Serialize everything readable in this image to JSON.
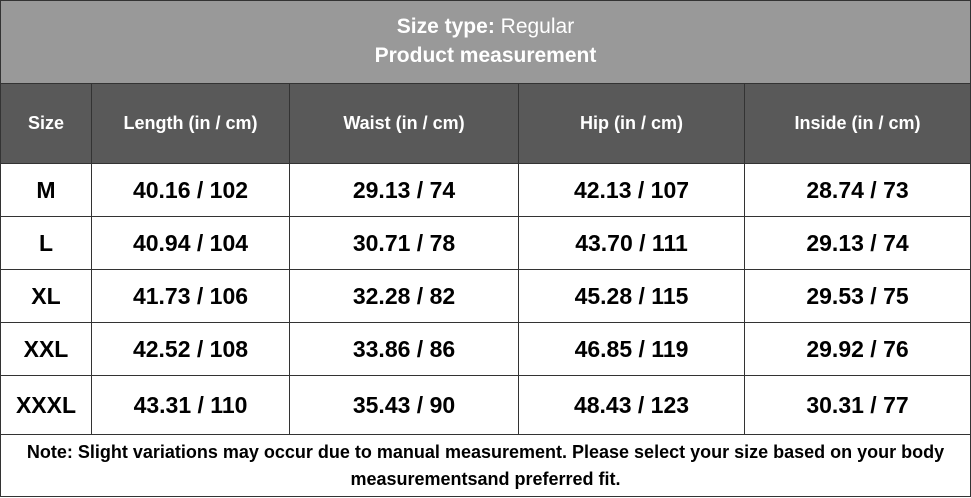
{
  "title": {
    "label": "Size type:",
    "value": "Regular",
    "subtitle": "Product measurement"
  },
  "table": {
    "columns": [
      "Size",
      "Length (in / cm)",
      "Waist (in / cm)",
      "Hip (in / cm)",
      "Inside (in / cm)"
    ],
    "rows": [
      [
        "M",
        "40.16 / 102",
        "29.13 / 74",
        "42.13 / 107",
        "28.74 / 73"
      ],
      [
        "L",
        "40.94 / 104",
        "30.71 / 78",
        "43.70 / 111",
        "29.13 / 74"
      ],
      [
        "XL",
        "41.73 / 106",
        "32.28 / 82",
        "45.28 / 115",
        "29.53 / 75"
      ],
      [
        "XXL",
        "42.52 / 108",
        "33.86 / 86",
        "46.85 / 119",
        "29.92 / 76"
      ],
      [
        "XXXL",
        "43.31 / 110",
        "35.43 / 90",
        "48.43 / 123",
        "30.31 / 77"
      ]
    ]
  },
  "note": "Note: Slight variations may occur due to manual measurement. Please select your size based on your body measurementsand preferred fit."
}
